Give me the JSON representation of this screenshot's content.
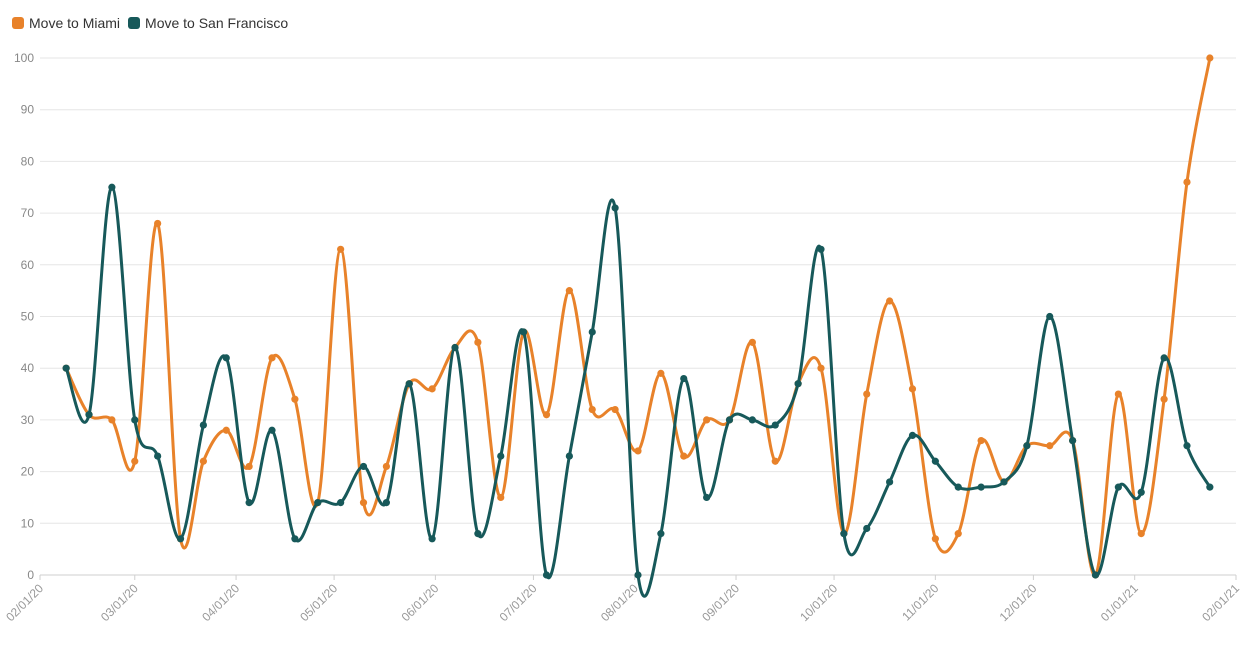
{
  "legend": [
    {
      "label": "Move to Miami",
      "color": "#e8822a"
    },
    {
      "label": "Move to San Francisco",
      "color": "#17595a"
    }
  ],
  "chart_data": {
    "type": "line",
    "ylim": [
      0,
      100
    ],
    "yticks": [
      0,
      10,
      20,
      30,
      40,
      50,
      60,
      70,
      80,
      90,
      100
    ],
    "xlim": [
      "2020-02-01",
      "2021-02-01"
    ],
    "xticks": [
      "02/01/20",
      "03/01/20",
      "04/01/20",
      "05/01/20",
      "06/01/20",
      "07/01/20",
      "08/01/20",
      "09/01/20",
      "10/01/20",
      "11/01/20",
      "12/01/20",
      "01/01/21",
      "02/01/21"
    ],
    "grid": true,
    "legend_position": "top-left",
    "x": [
      "2020-02-09",
      "2020-02-16",
      "2020-02-23",
      "2020-03-01",
      "2020-03-08",
      "2020-03-15",
      "2020-03-22",
      "2020-03-29",
      "2020-04-05",
      "2020-04-12",
      "2020-04-19",
      "2020-04-26",
      "2020-05-03",
      "2020-05-10",
      "2020-05-17",
      "2020-05-24",
      "2020-05-31",
      "2020-06-07",
      "2020-06-14",
      "2020-06-21",
      "2020-06-28",
      "2020-07-05",
      "2020-07-12",
      "2020-07-19",
      "2020-07-26",
      "2020-08-02",
      "2020-08-09",
      "2020-08-16",
      "2020-08-23",
      "2020-08-30",
      "2020-09-06",
      "2020-09-13",
      "2020-09-20",
      "2020-09-27",
      "2020-10-04",
      "2020-10-11",
      "2020-10-18",
      "2020-10-25",
      "2020-11-01",
      "2020-11-08",
      "2020-11-15",
      "2020-11-22",
      "2020-11-29",
      "2020-12-06",
      "2020-12-13",
      "2020-12-20",
      "2020-12-27",
      "2021-01-03",
      "2021-01-10",
      "2021-01-17",
      "2021-01-24"
    ],
    "series": [
      {
        "name": "Move to Miami",
        "color": "#e8822a",
        "values": [
          40,
          31,
          30,
          22,
          68,
          7,
          22,
          28,
          21,
          42,
          34,
          14,
          63,
          14,
          21,
          37,
          36,
          44,
          45,
          15,
          47,
          31,
          55,
          32,
          32,
          24,
          39,
          23,
          30,
          30,
          45,
          22,
          37,
          40,
          8,
          35,
          53,
          36,
          7,
          8,
          26,
          18,
          25,
          25,
          26,
          0,
          35,
          8,
          34,
          76,
          100
        ]
      },
      {
        "name": "Move to San Francisco",
        "color": "#17595a",
        "values": [
          40,
          31,
          75,
          30,
          23,
          7,
          29,
          42,
          14,
          28,
          7,
          14,
          14,
          21,
          14,
          37,
          7,
          44,
          8,
          23,
          47,
          0,
          23,
          47,
          71,
          0,
          8,
          38,
          15,
          30,
          30,
          29,
          37,
          63,
          8,
          9,
          18,
          27,
          22,
          17,
          17,
          18,
          25,
          50,
          26,
          0,
          17,
          16,
          42,
          25,
          17
        ]
      }
    ]
  }
}
